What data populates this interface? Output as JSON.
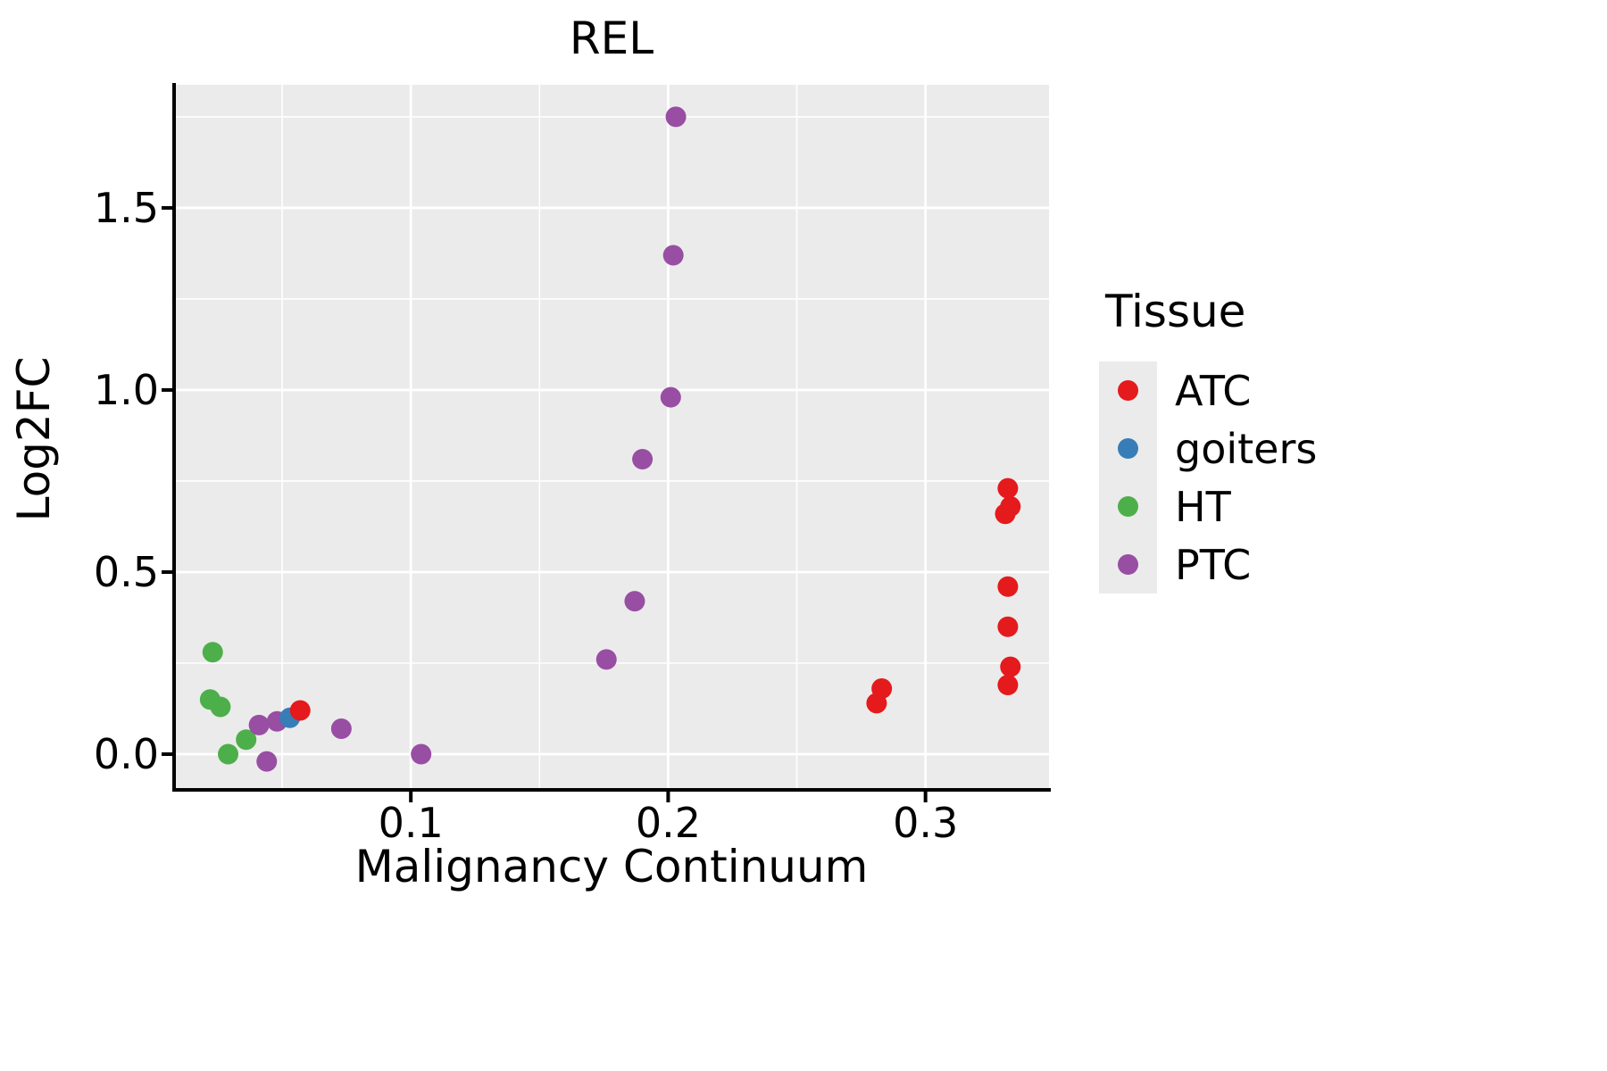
{
  "chart": {
    "title": "REL",
    "xlabel": "Malignancy Continuum",
    "ylabel": "Log2FC",
    "legend_title": "Tissue"
  },
  "chart_data": {
    "type": "scatter",
    "title": "REL",
    "xlabel": "Malignancy Continuum",
    "ylabel": "Log2FC",
    "legend_title": "Tissue",
    "legend_position": "right",
    "grid": true,
    "panel_bg": "#EBEBEB",
    "grid_color": "#FFFFFF",
    "axis_color": "#000000",
    "xlim": [
      0.008,
      0.348
    ],
    "ylim": [
      -0.098,
      1.838
    ],
    "x_ticks": [
      0.1,
      0.2,
      0.3
    ],
    "x_tick_labels": [
      "0.1",
      "0.2",
      "0.3"
    ],
    "x_minor_ticks": [
      0.05,
      0.15,
      0.25,
      0.35
    ],
    "y_ticks": [
      0.0,
      0.5,
      1.0,
      1.5
    ],
    "y_tick_labels": [
      "0.0",
      "0.5",
      "1.0",
      "1.5"
    ],
    "y_minor_ticks": [
      0.25,
      0.75,
      1.25,
      1.75
    ],
    "point_radius": 11.5,
    "draw_order": [
      "HT",
      "PTC",
      "goiters",
      "ATC"
    ],
    "series": [
      {
        "name": "ATC",
        "color": "#E41A1C",
        "points": [
          [
            0.057,
            0.12
          ],
          [
            0.281,
            0.14
          ],
          [
            0.283,
            0.18
          ],
          [
            0.332,
            0.73
          ],
          [
            0.333,
            0.68
          ],
          [
            0.331,
            0.66
          ],
          [
            0.332,
            0.46
          ],
          [
            0.332,
            0.35
          ],
          [
            0.333,
            0.24
          ],
          [
            0.332,
            0.19
          ]
        ]
      },
      {
        "name": "goiters",
        "color": "#377EB8",
        "points": [
          [
            0.053,
            0.1
          ]
        ]
      },
      {
        "name": "HT",
        "color": "#4DAF4A",
        "points": [
          [
            0.023,
            0.28
          ],
          [
            0.022,
            0.15
          ],
          [
            0.026,
            0.13
          ],
          [
            0.029,
            0.0
          ],
          [
            0.036,
            0.04
          ]
        ]
      },
      {
        "name": "PTC",
        "color": "#984EA3",
        "points": [
          [
            0.041,
            0.08
          ],
          [
            0.044,
            -0.02
          ],
          [
            0.048,
            0.09
          ],
          [
            0.073,
            0.07
          ],
          [
            0.104,
            0.0
          ],
          [
            0.176,
            0.26
          ],
          [
            0.187,
            0.42
          ],
          [
            0.19,
            0.81
          ],
          [
            0.201,
            0.98
          ],
          [
            0.202,
            1.37
          ],
          [
            0.203,
            1.75
          ]
        ]
      }
    ]
  }
}
